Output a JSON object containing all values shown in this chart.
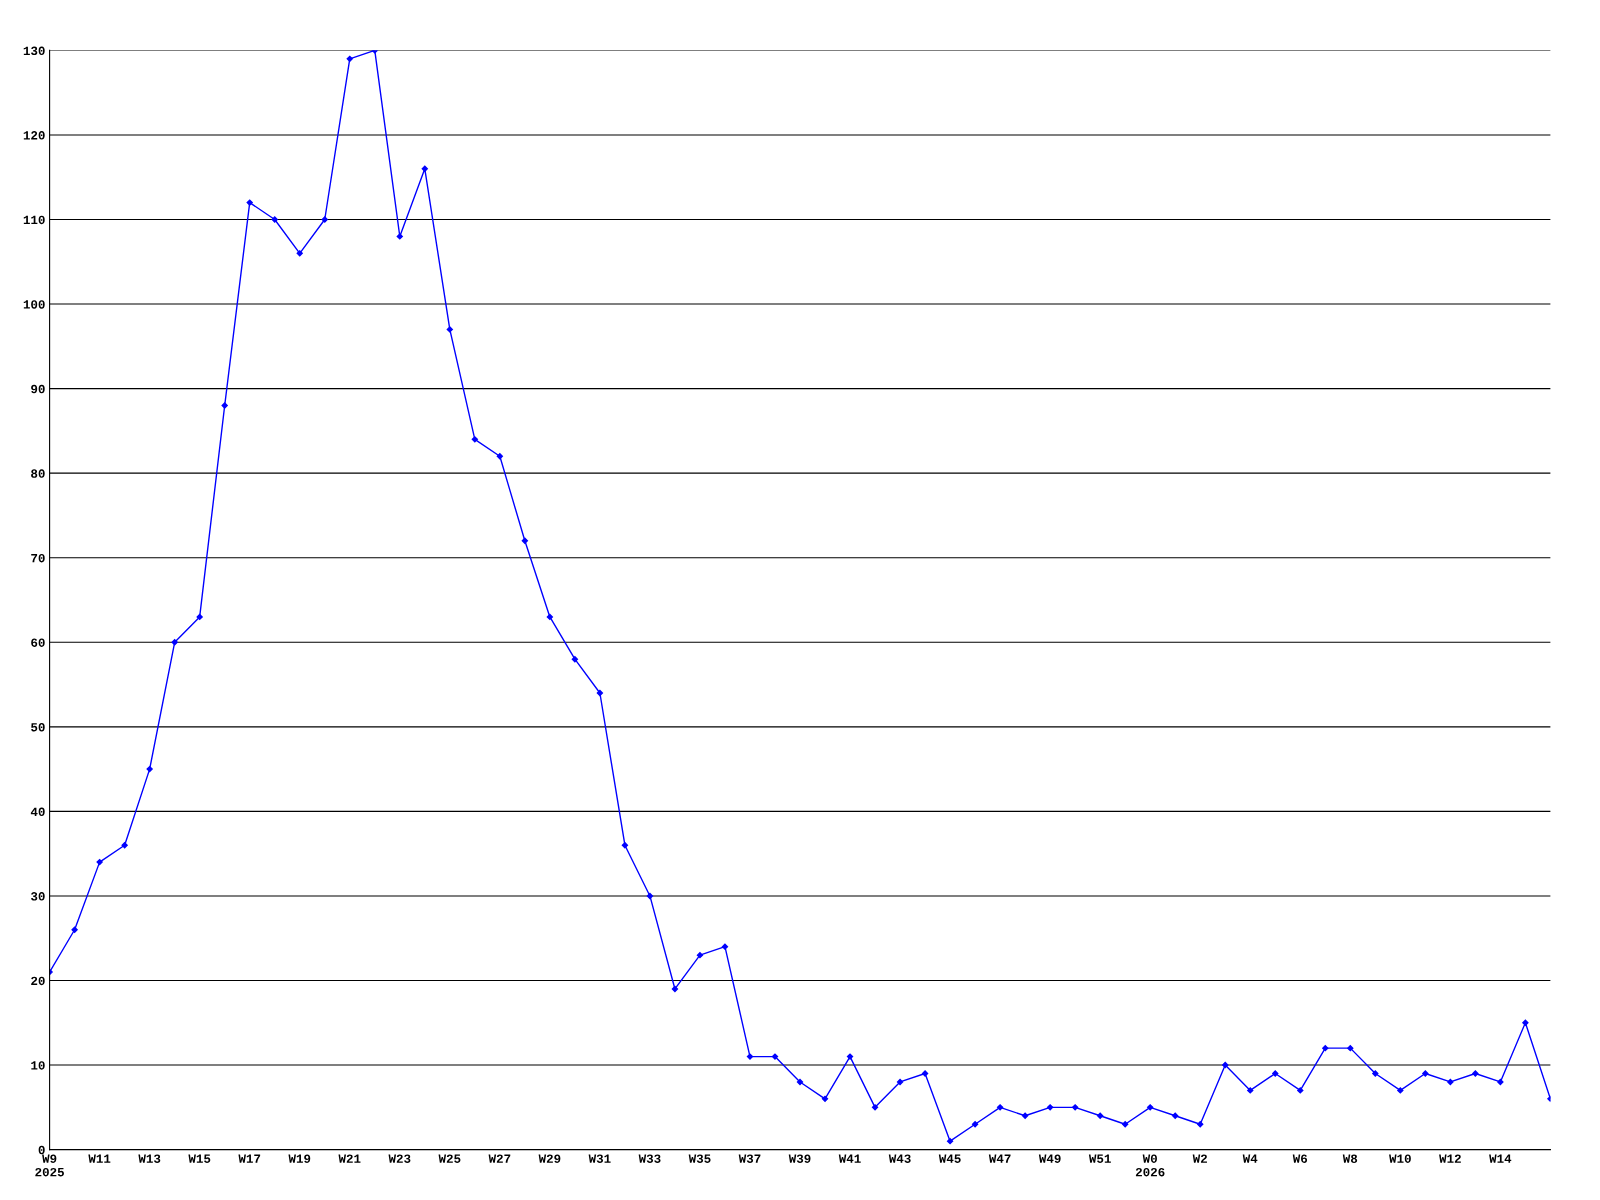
{
  "chart_data": {
    "type": "line",
    "categories": [
      "W9\n2025",
      null,
      "W11",
      null,
      "W13",
      null,
      "W15",
      null,
      "W17",
      null,
      "W19",
      null,
      "W21",
      null,
      "W23",
      null,
      "W25",
      null,
      "W27",
      null,
      "W29",
      null,
      "W31",
      null,
      "W33",
      null,
      "W35",
      null,
      "W37",
      null,
      "W39",
      null,
      "W41",
      null,
      "W43",
      null,
      "W45",
      null,
      "W47",
      null,
      "W49",
      null,
      "W51",
      null,
      "W0\n2026",
      null,
      "W2",
      null,
      "W4",
      null,
      "W6",
      null,
      "W8",
      null,
      "W10",
      null,
      "W12",
      null,
      "W14",
      null,
      null
    ],
    "series": [
      {
        "color": "#0000ff",
        "values": [
          21,
          26,
          34,
          36,
          45,
          60,
          63,
          88,
          112,
          110,
          106,
          110,
          129,
          130,
          108,
          116,
          97,
          84,
          82,
          72,
          63,
          58,
          54,
          36,
          30,
          19,
          23,
          24,
          11,
          11,
          8,
          6,
          11,
          5,
          8,
          9,
          1,
          3,
          5,
          4,
          5,
          5,
          4,
          3,
          5,
          4,
          3,
          10,
          7,
          9,
          7,
          12,
          12,
          9,
          7,
          9,
          8,
          9,
          8,
          15,
          6
        ]
      }
    ],
    "ylim": [
      0,
      130
    ],
    "yticks": [
      0,
      10,
      20,
      30,
      40,
      50,
      60,
      70,
      80,
      90,
      100,
      110,
      120,
      130
    ],
    "grid": "y",
    "marker": "diamond",
    "line_style": "solid"
  }
}
